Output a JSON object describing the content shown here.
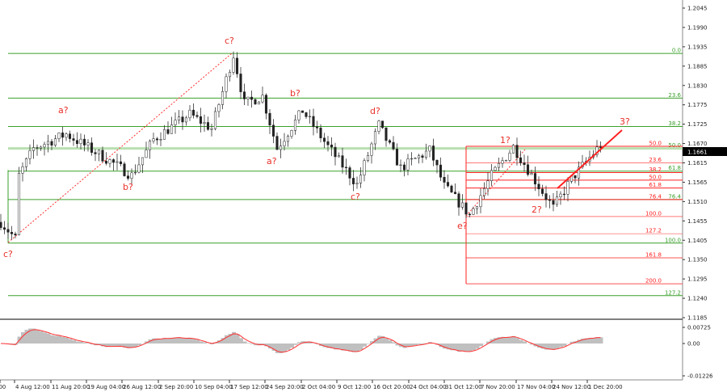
{
  "chart_data": {
    "type": "candlestick",
    "instrument_price": "1.1661",
    "price_axis": {
      "ticks": [
        "1.2045",
        "1.1990",
        "1.1935",
        "1.1885",
        "1.1830",
        "1.1775",
        "1.1725",
        "1.1670",
        "1.1615",
        "1.1565",
        "1.1510",
        "1.1455",
        "1.1405",
        "1.1350",
        "1.1295",
        "1.1240",
        "1.1185"
      ],
      "range": [
        1.1185,
        1.2045
      ]
    },
    "time_axis": {
      "ticks": [
        ":00",
        "4 Aug 12:00",
        "11 Aug 20:00",
        "19 Aug 04:00",
        "26 Aug 12:00",
        "2 Sep 20:00",
        "10 Sep 04:00",
        "17 Sep 12:00",
        "24 Sep 20:00",
        "2 Oct 04:00",
        "9 Oct 12:00",
        "16 Oct 20:00",
        "24 Oct 04:00",
        "31 Oct 12:00",
        "7 Nov 20:00",
        "17 Nov 04:00",
        "24 Nov 12:00",
        "1 Dec 20:00"
      ]
    },
    "price_path_approx": [
      [
        0,
        1.145
      ],
      [
        4,
        1.1405
      ],
      [
        5,
        1.158
      ],
      [
        9,
        1.1655
      ],
      [
        18,
        1.1695
      ],
      [
        30,
        1.162
      ],
      [
        36,
        1.158
      ],
      [
        42,
        1.168
      ],
      [
        52,
        1.175
      ],
      [
        58,
        1.171
      ],
      [
        64,
        1.1915
      ],
      [
        67,
        1.178
      ],
      [
        72,
        1.18
      ],
      [
        76,
        1.1655
      ],
      [
        83,
        1.176
      ],
      [
        90,
        1.166
      ],
      [
        98,
        1.1555
      ],
      [
        104,
        1.172
      ],
      [
        110,
        1.16
      ],
      [
        118,
        1.165
      ],
      [
        122,
        1.155
      ],
      [
        129,
        1.147
      ],
      [
        135,
        1.158
      ],
      [
        141,
        1.166
      ],
      [
        148,
        1.155
      ],
      [
        152,
        1.149
      ],
      [
        157,
        1.157
      ],
      [
        165,
        1.1665
      ]
    ],
    "fib_green": {
      "color": "#3aa02a",
      "levels": [
        {
          "label": "0.0",
          "price": 1.1919
        },
        {
          "label": "23.6",
          "price": 1.1795
        },
        {
          "label": "38.2",
          "price": 1.1716
        },
        {
          "label": "50.0",
          "price": 1.1655
        },
        {
          "label": "61.8",
          "price": 1.1592
        },
        {
          "label": "76.4",
          "price": 1.1513
        },
        {
          "label": "100.0",
          "price": 1.1392
        },
        {
          "label": "127.2",
          "price": 1.1246
        }
      ]
    },
    "fib_red": {
      "color": "#ff2020",
      "levels": [
        {
          "label": "50.0",
          "price": 1.1661
        },
        {
          "label": "23.6",
          "price": 1.1615
        },
        {
          "label": "38.2",
          "price": 1.1588
        },
        {
          "label": "50.0",
          "price": 1.1567
        },
        {
          "label": "61.8",
          "price": 1.1545
        },
        {
          "label": "76.4",
          "price": 1.1513
        },
        {
          "label": "100.0",
          "price": 1.1466
        },
        {
          "label": "127.2",
          "price": 1.1418
        },
        {
          "label": "161.8",
          "price": 1.1351
        },
        {
          "label": "200.0",
          "price": 1.1279
        }
      ]
    },
    "wave_labels": [
      "c?",
      "a?",
      "b?",
      "c?",
      "b?",
      "a?",
      "c?",
      "d?",
      "e?",
      "1?",
      "2?",
      "3?",
      "c?"
    ],
    "oscillator": {
      "ticks": [
        "0.00725",
        "0.00",
        "-0.01226"
      ],
      "hist_color": "#c0c0c0",
      "signal_color": "#ff3030"
    }
  }
}
